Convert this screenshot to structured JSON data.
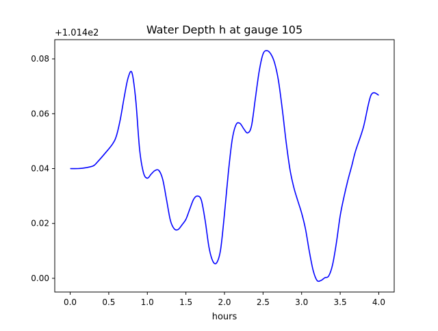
{
  "chart_data": {
    "type": "line",
    "title": "Water Depth h at gauge 105",
    "xlabel": "hours",
    "ylabel": "",
    "offset_label": "+1.014e2",
    "xlim": [
      -0.2,
      4.2
    ],
    "ylim": [
      -0.005,
      0.087
    ],
    "x_ticks": [
      0.0,
      0.5,
      1.0,
      1.5,
      2.0,
      2.5,
      3.0,
      3.5,
      4.0
    ],
    "x_tick_labels": [
      "0.0",
      "0.5",
      "1.0",
      "1.5",
      "2.0",
      "2.5",
      "3.0",
      "3.5",
      "4.0"
    ],
    "y_ticks": [
      0.0,
      0.02,
      0.04,
      0.06,
      0.08
    ],
    "y_tick_labels": [
      "0.00",
      "0.02",
      "0.04",
      "0.06",
      "0.08"
    ],
    "grid": false,
    "series": [
      {
        "color": "#0000ff",
        "x": [
          0.0,
          0.1,
          0.2,
          0.3,
          0.35,
          0.45,
          0.55,
          0.6,
          0.65,
          0.7,
          0.75,
          0.8,
          0.85,
          0.9,
          0.95,
          1.0,
          1.05,
          1.1,
          1.15,
          1.2,
          1.25,
          1.3,
          1.35,
          1.4,
          1.45,
          1.5,
          1.55,
          1.6,
          1.65,
          1.7,
          1.75,
          1.8,
          1.85,
          1.9,
          1.95,
          2.0,
          2.05,
          2.1,
          2.15,
          2.2,
          2.25,
          2.3,
          2.35,
          2.4,
          2.45,
          2.5,
          2.55,
          2.6,
          2.65,
          2.7,
          2.75,
          2.8,
          2.85,
          2.9,
          2.95,
          3.0,
          3.05,
          3.1,
          3.15,
          3.2,
          3.25,
          3.3,
          3.35,
          3.4,
          3.45,
          3.5,
          3.55,
          3.6,
          3.65,
          3.7,
          3.8,
          3.9,
          4.0
        ],
        "y": [
          0.04,
          0.04,
          0.0403,
          0.041,
          0.0423,
          0.0455,
          0.049,
          0.052,
          0.058,
          0.066,
          0.073,
          0.075,
          0.065,
          0.047,
          0.0385,
          0.0365,
          0.038,
          0.0393,
          0.0393,
          0.036,
          0.0285,
          0.021,
          0.018,
          0.0178,
          0.0195,
          0.0215,
          0.0252,
          0.0288,
          0.03,
          0.0285,
          0.021,
          0.0112,
          0.0062,
          0.0057,
          0.0105,
          0.0235,
          0.0385,
          0.0505,
          0.056,
          0.0565,
          0.0545,
          0.053,
          0.0555,
          0.0655,
          0.0755,
          0.0818,
          0.083,
          0.0818,
          0.0785,
          0.072,
          0.0615,
          0.0495,
          0.0395,
          0.033,
          0.0283,
          0.0238,
          0.018,
          0.0098,
          0.0028,
          -0.0008,
          -0.0008,
          0.0002,
          0.0008,
          0.0048,
          0.0128,
          0.0228,
          0.0298,
          0.0358,
          0.041,
          0.0465,
          0.055,
          0.0668,
          0.0668
        ]
      }
    ]
  }
}
